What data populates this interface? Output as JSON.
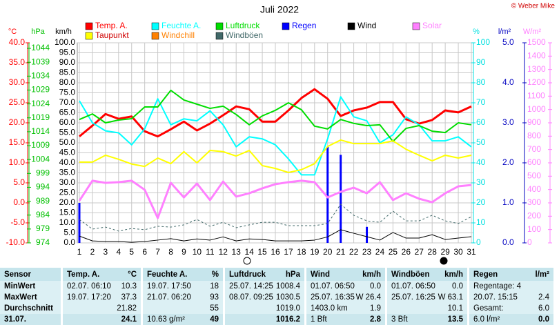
{
  "chart_data": {
    "type": "line",
    "title": "Juli 2022",
    "copyright": "© Weber Mike",
    "categories": [
      "1",
      "2",
      "3",
      "4",
      "5",
      "6",
      "7",
      "8",
      "9",
      "10",
      "11",
      "12",
      "13",
      "14",
      "15",
      "16",
      "17",
      "18",
      "19",
      "20",
      "21",
      "22",
      "23",
      "24",
      "25",
      "26",
      "27",
      "28",
      "29",
      "30",
      "31"
    ],
    "y_label": "km/h",
    "ylim": [
      0,
      100
    ],
    "yticks": [
      {
        "value": 0,
        "label": "0.0"
      },
      {
        "value": 5,
        "label": "5.0"
      },
      {
        "value": 10,
        "label": "10.0"
      },
      {
        "value": 15,
        "label": "15.0"
      },
      {
        "value": 20,
        "label": "20.0"
      },
      {
        "value": 25,
        "label": "25.0"
      },
      {
        "value": 30,
        "label": "30.0"
      },
      {
        "value": 35,
        "label": "35.0"
      },
      {
        "value": 40,
        "label": "40.0"
      },
      {
        "value": 45,
        "label": "45.0"
      },
      {
        "value": 50,
        "label": "50.0"
      },
      {
        "value": 55,
        "label": "55.0"
      },
      {
        "value": 60,
        "label": "60.0"
      },
      {
        "value": 65,
        "label": "65.0"
      },
      {
        "value": 70,
        "label": "70.0"
      },
      {
        "value": 75,
        "label": "75.0"
      },
      {
        "value": 80,
        "label": "80.0"
      },
      {
        "value": 85,
        "label": "85.0"
      },
      {
        "value": 90,
        "label": "90.0"
      },
      {
        "value": 95,
        "label": "95.0"
      },
      {
        "value": 100,
        "label": "100.0"
      }
    ],
    "grid": true,
    "axes": {
      "temp": {
        "label": "°C",
        "color": "#ff0000",
        "lim": [
          -10,
          40
        ],
        "ticks": [
          {
            "value": -10,
            "label": "-10.0"
          },
          {
            "value": -5,
            "label": "-5.0"
          },
          {
            "value": 0,
            "label": "0.0"
          },
          {
            "value": 5,
            "label": "5.0"
          },
          {
            "value": 10,
            "label": "10.0"
          },
          {
            "value": 15,
            "label": "15.0"
          },
          {
            "value": 20,
            "label": "20.0"
          },
          {
            "value": 25,
            "label": "25.0"
          },
          {
            "value": 30,
            "label": "30.0"
          },
          {
            "value": 35,
            "label": "35.0"
          },
          {
            "value": 40,
            "label": "40.0"
          }
        ]
      },
      "hpa": {
        "label": "hPa",
        "color": "#00c000",
        "lim": [
          974,
          1046
        ],
        "ticks": [
          974,
          979,
          984,
          989,
          994,
          999,
          1004,
          1009,
          1014,
          1019,
          1024,
          1029,
          1034,
          1039,
          1044
        ]
      },
      "pct": {
        "label": "%",
        "color": "#00e0e0",
        "lim": [
          0,
          100
        ],
        "ticks": [
          0,
          10,
          20,
          30,
          40,
          50,
          60,
          70,
          80,
          90,
          100
        ]
      },
      "rain": {
        "label": "l/m²",
        "color": "#0000c0",
        "lim": [
          0,
          5
        ],
        "ticks": [
          {
            "value": 0,
            "label": "0.0"
          },
          {
            "value": 1,
            "label": "1.0"
          },
          {
            "value": 2,
            "label": "2.0"
          },
          {
            "value": 3,
            "label": "3.0"
          },
          {
            "value": 4,
            "label": "4.0"
          },
          {
            "value": 5,
            "label": "5.0"
          }
        ]
      },
      "solar": {
        "label": "W/m²",
        "color": "#ff80ff",
        "lim": [
          0,
          1500
        ],
        "ticks": [
          0,
          100,
          200,
          300,
          400,
          500,
          600,
          700,
          800,
          900,
          1000,
          1100,
          1200,
          1300,
          1400,
          1500
        ]
      }
    },
    "series": [
      {
        "name": "Temp. A.",
        "color": "#ff0000",
        "axis": "temp",
        "width": 3,
        "values": [
          16.6,
          19.3,
          22.2,
          21.0,
          21.6,
          17.9,
          16.6,
          18.4,
          20.3,
          18.1,
          19.8,
          21.9,
          24.1,
          23.4,
          20.3,
          20.3,
          23.1,
          26.2,
          28.4,
          26.0,
          21.7,
          23.1,
          23.8,
          25.2,
          25.2,
          20.9,
          19.8,
          20.7,
          23.1,
          22.6,
          24.1
        ]
      },
      {
        "name": "Feuchte A.",
        "color": "#00ffff",
        "axis": "pct",
        "width": 2,
        "values": [
          71,
          60,
          56,
          55,
          49,
          57,
          72,
          59,
          62,
          61,
          66,
          59,
          48,
          53,
          52,
          49,
          42,
          34,
          34,
          52,
          73,
          63,
          61,
          50,
          54,
          63,
          59,
          51,
          51,
          53,
          48
        ]
      },
      {
        "name": "Luftdruck",
        "color": "#00dd00",
        "axis": "hpa",
        "width": 2,
        "values": [
          1018.4,
          1020.4,
          1017.2,
          1018.2,
          1018.7,
          1022.9,
          1022.9,
          1028.9,
          1025.4,
          1023.9,
          1022.4,
          1023.2,
          1020.2,
          1016.5,
          1019.7,
          1021.7,
          1024.4,
          1021.9,
          1016.0,
          1015.0,
          1018.4,
          1017.0,
          1016.2,
          1016.5,
          1010.5,
          1015.2,
          1016.2,
          1014.2,
          1013.7,
          1017.2,
          1016.5
        ]
      },
      {
        "name": "Regen",
        "color": "#0000ff",
        "axis": "rain",
        "style": "bar",
        "values": [
          1.0,
          0,
          0,
          0,
          0,
          0,
          0,
          0,
          0,
          0,
          0,
          0,
          0,
          0,
          0,
          0,
          0,
          0,
          0,
          2.4,
          2.2,
          0,
          0.4,
          0,
          0,
          0,
          0,
          0,
          0,
          0,
          0
        ]
      },
      {
        "name": "Wind",
        "color": "#000000",
        "axis": "y",
        "width": 1,
        "values": [
          3.4,
          1.0,
          0.7,
          0.7,
          0.3,
          0.7,
          1.4,
          2.1,
          1.0,
          2.0,
          1.4,
          3.0,
          1.0,
          2.0,
          1.7,
          1.0,
          1.0,
          1.0,
          1.4,
          3.0,
          6.6,
          4.8,
          3.1,
          1.4,
          5.2,
          2.4,
          2.4,
          4.1,
          1.7,
          2.4,
          3.1
        ]
      },
      {
        "name": "Solar",
        "color": "#ff80ff",
        "axis": "solar",
        "width": 3,
        "values": [
          316,
          466,
          450,
          455,
          466,
          398,
          186,
          450,
          341,
          445,
          321,
          460,
          347,
          372,
          409,
          440,
          455,
          466,
          455,
          341,
          383,
          414,
          372,
          455,
          321,
          372,
          331,
          305,
          372,
          424,
          434
        ]
      },
      {
        "name": "Taupunkt",
        "color": "#ffff00",
        "axis": "temp",
        "width": 2,
        "values": [
          10.2,
          10.2,
          11.9,
          10.9,
          9.7,
          9.1,
          11.2,
          9.8,
          12.8,
          10.0,
          13.1,
          12.8,
          11.7,
          13.1,
          9.3,
          8.6,
          7.6,
          8.3,
          9.8,
          14.1,
          15.7,
          14.8,
          14.8,
          14.8,
          15.5,
          13.4,
          11.9,
          10.5,
          11.9,
          11.2,
          11.9
        ]
      },
      {
        "name": "Windchill",
        "color": "#ff8000",
        "axis": "temp"
      },
      {
        "name": "Windböen",
        "color": "#406868",
        "axis": "y",
        "width": 1,
        "style": "dashed",
        "values": [
          11.7,
          6.9,
          7.9,
          5.9,
          7.2,
          6.6,
          8.3,
          7.9,
          9.0,
          11.7,
          8.3,
          10.3,
          7.6,
          9.0,
          10.3,
          10.3,
          8.6,
          8.6,
          8.6,
          9.7,
          19.3,
          13.8,
          11.0,
          10.3,
          15.9,
          11.0,
          11.0,
          13.8,
          11.0,
          9.7,
          13.1
        ]
      }
    ]
  },
  "table": {
    "sensor_header": "Sensor",
    "row_labels": [
      "MinWert",
      "MaxWert",
      "Durchschnitt",
      "31.07."
    ],
    "columns": [
      {
        "name": "Temp. A.",
        "unit": "°C",
        "cells": [
          {
            "left": "02.07.  06:10",
            "right": "10.3"
          },
          {
            "left": "19.07.  17:20",
            "right": "37.3"
          },
          {
            "right": "21.82"
          },
          {
            "right": "24.1"
          }
        ]
      },
      {
        "name": "Feuchte A.",
        "unit": "%",
        "cells": [
          {
            "left": "19.07.  17:50",
            "right": "18"
          },
          {
            "left": "21.07.  06:20",
            "right": "93"
          },
          {
            "right": "55"
          },
          {
            "left": "10.63 g/m²",
            "right": "49"
          }
        ]
      },
      {
        "name": "Luftdruck",
        "unit": "hPa",
        "cells": [
          {
            "left": "25.07.  14:25",
            "right": "1008.4"
          },
          {
            "left": "08.07.  09:25",
            "right": "1030.5"
          },
          {
            "right": "1019.0"
          },
          {
            "right": "1016.2"
          }
        ]
      },
      {
        "name": "Wind",
        "unit": "km/h",
        "cells": [
          {
            "left": "01.07.  06:50",
            "right": "0.0"
          },
          {
            "left": "25.07.  16:35",
            "right": "W 26.4"
          },
          {
            "left": "1403.0 km",
            "right": "1.9"
          },
          {
            "left": "1 Bft",
            "right": "2.8"
          }
        ]
      },
      {
        "name": "Windböen",
        "unit": "km/h",
        "cells": [
          {
            "left": "01.07.  06:50",
            "right": "0.0"
          },
          {
            "left": "25.07.  16:25",
            "right": "W 63.1"
          },
          {
            "right": "10.1"
          },
          {
            "left": "3 Bft",
            "right": "13.5"
          }
        ]
      },
      {
        "name": "Regen",
        "unit": "l/m²",
        "cells": [
          {
            "left": "Regentage: 4"
          },
          {
            "left": "20.07.  15:15",
            "right": "2.4"
          },
          {
            "left": "Gesamt:",
            "right": "6.0"
          },
          {
            "left": "6.0 l/m²",
            "right": "0.0"
          }
        ]
      }
    ]
  }
}
